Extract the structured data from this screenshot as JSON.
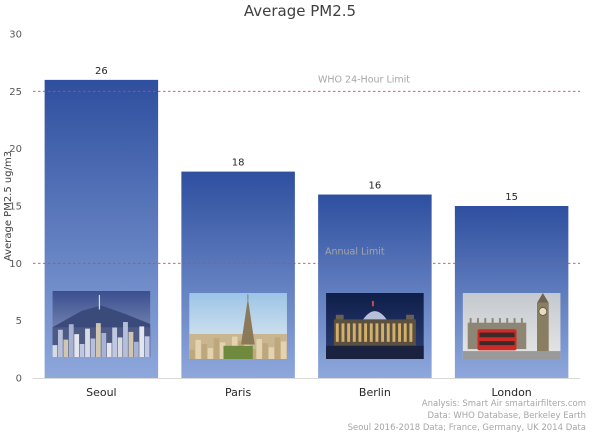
{
  "chart_data": {
    "type": "bar",
    "title": "Average PM2.5",
    "xlabel": "",
    "ylabel": "Average PM2.5 ug/m3",
    "categories": [
      "Seoul",
      "Paris",
      "Berlin",
      "London"
    ],
    "values": [
      26,
      18,
      16,
      15
    ],
    "ylim": [
      0,
      30
    ],
    "yticks": [
      "0",
      "5",
      "10",
      "15",
      "20",
      "25",
      "30"
    ],
    "grid": false,
    "bar_gradient": [
      "#2e4f9f",
      "#8ea8dc"
    ],
    "reference_lines": [
      {
        "label": "WHO 24-Hour Limit",
        "value": 25,
        "color": "#e04040"
      },
      {
        "label": "Annual Limit",
        "value": 10,
        "color": "#e04040"
      }
    ],
    "bar_photos": [
      "seoul-skyline-photo",
      "paris-eiffel-tower-photo",
      "berlin-reichstag-photo",
      "london-big-ben-photo"
    ],
    "notes": [
      "Analysis: Smart Air smartairfilters.com",
      "Data: WHO Database, Berkeley Earth",
      "Seoul 2016-2018 Data; France, Germany, UK 2014 Data"
    ]
  }
}
